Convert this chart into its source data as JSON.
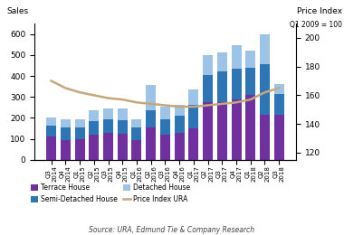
{
  "categories": [
    "Q3\n2014",
    "Q4\n2014",
    "Q1\n2015",
    "Q2\n2015",
    "Q3\n2015",
    "Q4\n2015",
    "Q1\n2016",
    "Q2\n2016",
    "Q3\n2016",
    "Q4\n2016",
    "Q1\n2017",
    "Q2\n2017",
    "Q3\n2017",
    "Q4\n2017",
    "Q1\n2018",
    "Q2\n2018",
    "Q3\n2018"
  ],
  "terrace": [
    110,
    95,
    100,
    120,
    130,
    125,
    95,
    155,
    120,
    130,
    150,
    275,
    275,
    290,
    310,
    215,
    215
  ],
  "semi_detached": [
    55,
    60,
    55,
    65,
    65,
    65,
    60,
    80,
    75,
    80,
    110,
    130,
    145,
    145,
    130,
    240,
    100
  ],
  "detached": [
    35,
    40,
    40,
    50,
    50,
    55,
    40,
    120,
    60,
    50,
    75,
    95,
    90,
    110,
    80,
    145,
    45
  ],
  "price_index": [
    170,
    165,
    162,
    160,
    158,
    157,
    155,
    154,
    153,
    152,
    152,
    153,
    154,
    155,
    157,
    162,
    165
  ],
  "terrace_color": "#7030A0",
  "semi_detached_color": "#2E75B6",
  "detached_color": "#9DC3E6",
  "price_index_color": "#C4A77D",
  "ylim_left": [
    0,
    650
  ],
  "ylim_right": [
    115,
    210
  ],
  "yticks_left": [
    0,
    100,
    200,
    300,
    400,
    500,
    600
  ],
  "yticks_right": [
    120,
    140,
    160,
    180,
    200
  ],
  "source_text": "Source: URA, Edmund Tie & Company Research"
}
